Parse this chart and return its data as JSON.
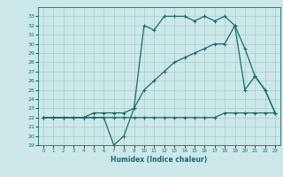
{
  "title": "",
  "xlabel": "Humidex (Indice chaleur)",
  "bg_color": "#cce8e8",
  "grid_color": "#b0d4d4",
  "line_color": "#1a6b6b",
  "xlim": [
    -0.5,
    23.5
  ],
  "ylim": [
    19,
    34
  ],
  "xticks": [
    0,
    1,
    2,
    3,
    4,
    5,
    6,
    7,
    8,
    9,
    10,
    11,
    12,
    13,
    14,
    15,
    16,
    17,
    18,
    19,
    20,
    21,
    22,
    23
  ],
  "yticks": [
    19,
    20,
    21,
    22,
    23,
    24,
    25,
    26,
    27,
    28,
    29,
    30,
    31,
    32,
    33
  ],
  "line1_x": [
    0,
    1,
    2,
    3,
    4,
    5,
    6,
    7,
    8,
    9,
    10,
    11,
    12,
    13,
    14,
    15,
    16,
    17,
    18,
    19,
    20,
    21,
    22,
    23
  ],
  "line1_y": [
    22,
    22,
    22,
    22,
    22,
    22,
    22,
    19,
    20,
    23,
    32,
    31.5,
    33,
    33,
    33,
    32.5,
    33,
    32.5,
    33,
    32,
    25,
    26.5,
    25,
    22.5
  ],
  "line2_x": [
    0,
    1,
    2,
    3,
    4,
    5,
    6,
    7,
    8,
    9,
    10,
    11,
    12,
    13,
    14,
    15,
    16,
    17,
    18,
    19,
    20,
    21,
    22,
    23
  ],
  "line2_y": [
    22,
    22,
    22,
    22,
    22,
    22.5,
    22.5,
    22.5,
    22.5,
    23,
    25,
    26,
    27,
    28,
    28.5,
    29,
    29.5,
    30,
    30,
    32,
    29.5,
    26.5,
    25,
    22.5
  ],
  "line3_x": [
    0,
    1,
    2,
    3,
    4,
    5,
    6,
    7,
    8,
    9,
    10,
    11,
    12,
    13,
    14,
    15,
    16,
    17,
    18,
    19,
    20,
    21,
    22,
    23
  ],
  "line3_y": [
    22,
    22,
    22,
    22,
    22,
    22,
    22,
    22,
    22,
    22,
    22,
    22,
    22,
    22,
    22,
    22,
    22,
    22,
    22.5,
    22.5,
    22.5,
    22.5,
    22.5,
    22.5
  ]
}
